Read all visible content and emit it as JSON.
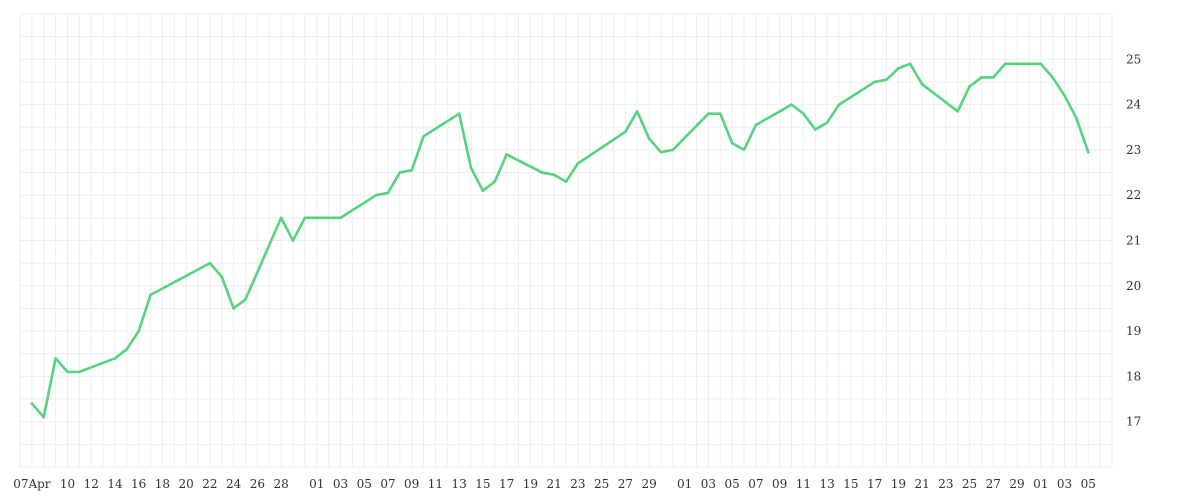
{
  "chart_data": {
    "type": "line",
    "title": "",
    "xlabel": "",
    "ylabel": "",
    "x": [
      "2022-04-07",
      "2022-04-08",
      "2022-04-09",
      "2022-04-10",
      "2022-04-11",
      "2022-04-14",
      "2022-04-15",
      "2022-04-16",
      "2022-04-17",
      "2022-04-22",
      "2022-04-23",
      "2022-04-24",
      "2022-04-25",
      "2022-04-28",
      "2022-04-29",
      "2022-04-30",
      "2022-05-03",
      "2022-05-06",
      "2022-05-07",
      "2022-05-08",
      "2022-05-09",
      "2022-05-10",
      "2022-05-13",
      "2022-05-14",
      "2022-05-15",
      "2022-05-16",
      "2022-05-17",
      "2022-05-20",
      "2022-05-21",
      "2022-05-22",
      "2022-05-23",
      "2022-05-27",
      "2022-05-28",
      "2022-05-29",
      "2022-05-30",
      "2022-05-31",
      "2022-06-03",
      "2022-06-04",
      "2022-06-05",
      "2022-06-06",
      "2022-06-07",
      "2022-06-10",
      "2022-06-11",
      "2022-06-12",
      "2022-06-13",
      "2022-06-14",
      "2022-06-17",
      "2022-06-18",
      "2022-06-19",
      "2022-06-20",
      "2022-06-21",
      "2022-06-24",
      "2022-06-25",
      "2022-06-26",
      "2022-06-27",
      "2022-06-28",
      "2022-07-01",
      "2022-07-02",
      "2022-07-03",
      "2022-07-04",
      "2022-07-05"
    ],
    "series": [
      {
        "name": "",
        "color": "#55d37f",
        "values": [
          17.4,
          17.1,
          18.4,
          18.1,
          18.1,
          18.4,
          18.6,
          19.0,
          19.8,
          20.5,
          20.2,
          19.5,
          19.7,
          21.5,
          21.0,
          21.5,
          21.5,
          22.0,
          22.05,
          22.5,
          22.55,
          23.3,
          23.8,
          22.6,
          22.1,
          22.3,
          22.9,
          22.5,
          22.45,
          22.3,
          22.7,
          23.4,
          23.85,
          23.25,
          22.95,
          23.0,
          23.8,
          23.8,
          23.15,
          23.0,
          23.55,
          24.0,
          23.8,
          23.45,
          23.6,
          24.0,
          24.5,
          24.55,
          24.8,
          24.9,
          24.45,
          23.85,
          24.4,
          24.6,
          24.6,
          24.9,
          24.9,
          24.6,
          24.2,
          23.7,
          22.95
        ]
      }
    ],
    "x_tick_labels": [
      {
        "date": "2022-04-07",
        "label": "07Apr"
      },
      {
        "date": "2022-04-10",
        "label": "10"
      },
      {
        "date": "2022-04-12",
        "label": "12"
      },
      {
        "date": "2022-04-14",
        "label": "14"
      },
      {
        "date": "2022-04-16",
        "label": "16"
      },
      {
        "date": "2022-04-18",
        "label": "18"
      },
      {
        "date": "2022-04-20",
        "label": "20"
      },
      {
        "date": "2022-04-22",
        "label": "22"
      },
      {
        "date": "2022-04-24",
        "label": "24"
      },
      {
        "date": "2022-04-26",
        "label": "26"
      },
      {
        "date": "2022-04-28",
        "label": "28"
      },
      {
        "date": "2022-05-01",
        "label": "01"
      },
      {
        "date": "2022-05-03",
        "label": "03"
      },
      {
        "date": "2022-05-05",
        "label": "05"
      },
      {
        "date": "2022-05-07",
        "label": "07"
      },
      {
        "date": "2022-05-09",
        "label": "09"
      },
      {
        "date": "2022-05-11",
        "label": "11"
      },
      {
        "date": "2022-05-13",
        "label": "13"
      },
      {
        "date": "2022-05-15",
        "label": "15"
      },
      {
        "date": "2022-05-17",
        "label": "17"
      },
      {
        "date": "2022-05-19",
        "label": "19"
      },
      {
        "date": "2022-05-21",
        "label": "21"
      },
      {
        "date": "2022-05-23",
        "label": "23"
      },
      {
        "date": "2022-05-25",
        "label": "25"
      },
      {
        "date": "2022-05-27",
        "label": "27"
      },
      {
        "date": "2022-05-29",
        "label": "29"
      },
      {
        "date": "2022-06-01",
        "label": "01"
      },
      {
        "date": "2022-06-03",
        "label": "03"
      },
      {
        "date": "2022-06-05",
        "label": "05"
      },
      {
        "date": "2022-06-07",
        "label": "07"
      },
      {
        "date": "2022-06-09",
        "label": "09"
      },
      {
        "date": "2022-06-11",
        "label": "11"
      },
      {
        "date": "2022-06-13",
        "label": "13"
      },
      {
        "date": "2022-06-15",
        "label": "15"
      },
      {
        "date": "2022-06-17",
        "label": "17"
      },
      {
        "date": "2022-06-19",
        "label": "19"
      },
      {
        "date": "2022-06-21",
        "label": "21"
      },
      {
        "date": "2022-06-23",
        "label": "23"
      },
      {
        "date": "2022-06-25",
        "label": "25"
      },
      {
        "date": "2022-06-27",
        "label": "27"
      },
      {
        "date": "2022-06-29",
        "label": "29"
      },
      {
        "date": "2022-07-01",
        "label": "01"
      },
      {
        "date": "2022-07-03",
        "label": "03"
      },
      {
        "date": "2022-07-05",
        "label": "05"
      }
    ],
    "y_ticks": [
      17,
      18,
      19,
      20,
      21,
      22,
      23,
      24,
      25
    ],
    "xlim": [
      "2022-04-06",
      "2022-07-07"
    ],
    "ylim": [
      16,
      26
    ],
    "y_axis_side": "right",
    "grid": true,
    "grid_color": "#eeeeee",
    "legend": "none"
  }
}
